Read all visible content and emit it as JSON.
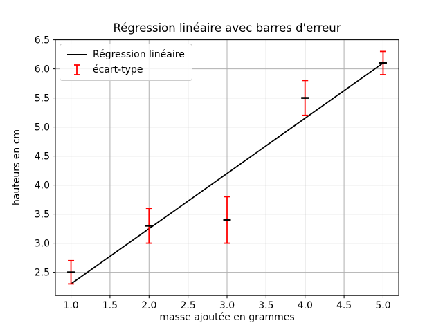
{
  "chart_data": {
    "type": "line",
    "title": "Régression linéaire avec barres d'erreur",
    "xlabel": "masse ajoutée en grammes",
    "ylabel": "hauteurs en cm",
    "xlim": [
      0.8,
      5.2
    ],
    "ylim": [
      2.1,
      6.5
    ],
    "x_ticks": [
      1.0,
      1.5,
      2.0,
      2.5,
      3.0,
      3.5,
      4.0,
      4.5,
      5.0
    ],
    "y_ticks": [
      2.5,
      3.0,
      3.5,
      4.0,
      4.5,
      5.0,
      5.5,
      6.0,
      6.5
    ],
    "grid": true,
    "legend_position": "upper left",
    "series": [
      {
        "name": "Régression linéaire",
        "type": "line",
        "color": "#000000",
        "x": [
          1.0,
          5.0
        ],
        "y": [
          2.3,
          6.1
        ]
      },
      {
        "name": "écart-type",
        "type": "errorbar",
        "color": "#ff0000",
        "marker_color": "#000000",
        "x": [
          1.0,
          2.0,
          3.0,
          4.0,
          5.0
        ],
        "y": [
          2.5,
          3.3,
          3.4,
          5.5,
          6.1
        ],
        "yerr": [
          0.2,
          0.3,
          0.4,
          0.3,
          0.2
        ]
      }
    ],
    "colors": {
      "grid": "#b0b0b0",
      "axis": "#000000",
      "background": "#ffffff",
      "errorbar": "#ff0000"
    }
  }
}
